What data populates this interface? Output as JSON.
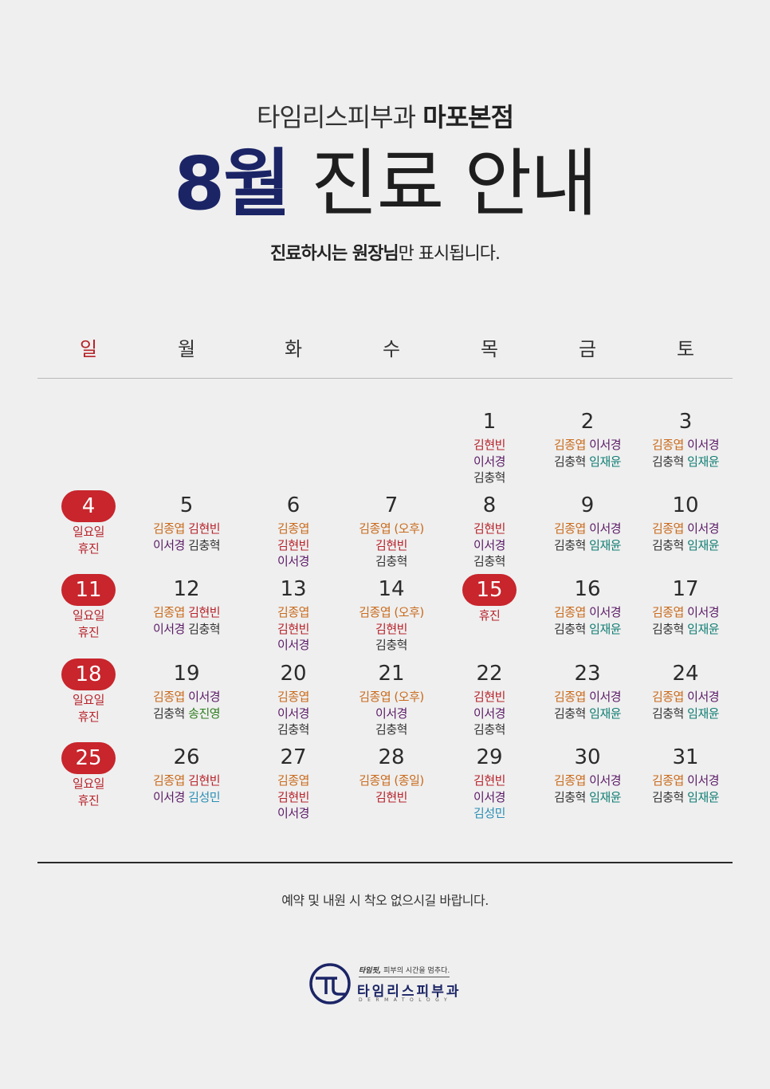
{
  "header": {
    "clinic_light": "타임리스피부과",
    "clinic_bold": "마포본점",
    "title_month": "8월",
    "title_rest": "진료 안내",
    "notice_bold": "진료하시는 원장님",
    "notice_rest": "만 표시됩니다."
  },
  "weekdays": [
    "일",
    "월",
    "화",
    "수",
    "목",
    "금",
    "토"
  ],
  "colors": {
    "김종엽": "#c96a1b",
    "김현빈": "#b7232b",
    "이서경": "#5a1a66",
    "김충혁": "#333333",
    "임재윤": "#0f7d73",
    "송진영": "#2f7d1f",
    "김성민": "#2a8fb5",
    "휴진": "#b7232b",
    "holiday_pill": "#c8252c",
    "brand_navy": "#1b2566"
  },
  "calendar": [
    {
      "date": "1",
      "col": 4,
      "row": 0,
      "lines": [
        [
          "김현빈"
        ],
        [
          "이서경"
        ],
        [
          "김충혁"
        ]
      ]
    },
    {
      "date": "2",
      "col": 5,
      "row": 0,
      "lines": [
        [
          "김종엽",
          "이서경"
        ],
        [
          "김충혁",
          "임재윤"
        ]
      ]
    },
    {
      "date": "3",
      "col": 6,
      "row": 0,
      "lines": [
        [
          "김종엽",
          "이서경"
        ],
        [
          "김충혁",
          "임재윤"
        ]
      ]
    },
    {
      "date": "4",
      "col": 0,
      "row": 1,
      "holiday": true,
      "lines": [
        [
          "일요일"
        ],
        [
          "휴진"
        ]
      ]
    },
    {
      "date": "5",
      "col": 1,
      "row": 1,
      "lines": [
        [
          "김종엽",
          "김현빈"
        ],
        [
          "이서경",
          "김충혁"
        ]
      ]
    },
    {
      "date": "6",
      "col": 2,
      "row": 1,
      "lines": [
        [
          "김종엽"
        ],
        [
          "김현빈"
        ],
        [
          "이서경"
        ]
      ]
    },
    {
      "date": "7",
      "col": 3,
      "row": 1,
      "lines": [
        [
          "김종엽 (오후)"
        ],
        [
          "김현빈"
        ],
        [
          "김충혁"
        ]
      ]
    },
    {
      "date": "8",
      "col": 4,
      "row": 1,
      "lines": [
        [
          "김현빈"
        ],
        [
          "이서경"
        ],
        [
          "김충혁"
        ]
      ]
    },
    {
      "date": "9",
      "col": 5,
      "row": 1,
      "lines": [
        [
          "김종엽",
          "이서경"
        ],
        [
          "김충혁",
          "임재윤"
        ]
      ]
    },
    {
      "date": "10",
      "col": 6,
      "row": 1,
      "lines": [
        [
          "김종엽",
          "이서경"
        ],
        [
          "김충혁",
          "임재윤"
        ]
      ]
    },
    {
      "date": "11",
      "col": 0,
      "row": 2,
      "holiday": true,
      "lines": [
        [
          "일요일"
        ],
        [
          "휴진"
        ]
      ]
    },
    {
      "date": "12",
      "col": 1,
      "row": 2,
      "lines": [
        [
          "김종엽",
          "김현빈"
        ],
        [
          "이서경",
          "김충혁"
        ]
      ]
    },
    {
      "date": "13",
      "col": 2,
      "row": 2,
      "lines": [
        [
          "김종엽"
        ],
        [
          "김현빈"
        ],
        [
          "이서경"
        ]
      ]
    },
    {
      "date": "14",
      "col": 3,
      "row": 2,
      "lines": [
        [
          "김종엽 (오후)"
        ],
        [
          "김현빈"
        ],
        [
          "김충혁"
        ]
      ]
    },
    {
      "date": "15",
      "col": 4,
      "row": 2,
      "holiday": true,
      "lines": [
        [
          "휴진"
        ]
      ]
    },
    {
      "date": "16",
      "col": 5,
      "row": 2,
      "lines": [
        [
          "김종엽",
          "이서경"
        ],
        [
          "김충혁",
          "임재윤"
        ]
      ]
    },
    {
      "date": "17",
      "col": 6,
      "row": 2,
      "lines": [
        [
          "김종엽",
          "이서경"
        ],
        [
          "김충혁",
          "임재윤"
        ]
      ]
    },
    {
      "date": "18",
      "col": 0,
      "row": 3,
      "holiday": true,
      "lines": [
        [
          "일요일"
        ],
        [
          "휴진"
        ]
      ]
    },
    {
      "date": "19",
      "col": 1,
      "row": 3,
      "lines": [
        [
          "김종엽",
          "이서경"
        ],
        [
          "김충혁",
          "송진영"
        ]
      ]
    },
    {
      "date": "20",
      "col": 2,
      "row": 3,
      "lines": [
        [
          "김종엽"
        ],
        [
          "이서경"
        ],
        [
          "김충혁"
        ]
      ]
    },
    {
      "date": "21",
      "col": 3,
      "row": 3,
      "lines": [
        [
          "김종엽 (오후)"
        ],
        [
          "이서경"
        ],
        [
          "김충혁"
        ]
      ]
    },
    {
      "date": "22",
      "col": 4,
      "row": 3,
      "lines": [
        [
          "김현빈"
        ],
        [
          "이서경"
        ],
        [
          "김충혁"
        ]
      ]
    },
    {
      "date": "23",
      "col": 5,
      "row": 3,
      "lines": [
        [
          "김종엽",
          "이서경"
        ],
        [
          "김충혁",
          "임재윤"
        ]
      ]
    },
    {
      "date": "24",
      "col": 6,
      "row": 3,
      "lines": [
        [
          "김종엽",
          "이서경"
        ],
        [
          "김충혁",
          "임재윤"
        ]
      ]
    },
    {
      "date": "25",
      "col": 0,
      "row": 4,
      "holiday": true,
      "lines": [
        [
          "일요일"
        ],
        [
          "휴진"
        ]
      ]
    },
    {
      "date": "26",
      "col": 1,
      "row": 4,
      "lines": [
        [
          "김종엽",
          "김현빈"
        ],
        [
          "이서경",
          "김성민"
        ]
      ]
    },
    {
      "date": "27",
      "col": 2,
      "row": 4,
      "lines": [
        [
          "김종엽"
        ],
        [
          "김현빈"
        ],
        [
          "이서경"
        ]
      ]
    },
    {
      "date": "28",
      "col": 3,
      "row": 4,
      "lines": [
        [
          "김종엽 (종일)"
        ],
        [
          "김현빈"
        ]
      ]
    },
    {
      "date": "29",
      "col": 4,
      "row": 4,
      "lines": [
        [
          "김현빈"
        ],
        [
          "이서경"
        ],
        [
          "김성민"
        ]
      ]
    },
    {
      "date": "30",
      "col": 5,
      "row": 4,
      "lines": [
        [
          "김종엽",
          "이서경"
        ],
        [
          "김충혁",
          "임재윤"
        ]
      ]
    },
    {
      "date": "31",
      "col": 6,
      "row": 4,
      "lines": [
        [
          "김종엽",
          "이서경"
        ],
        [
          "김충혁",
          "임재윤"
        ]
      ]
    }
  ],
  "footer": {
    "note": "예약 및 내원 시 착오 없으시길 바랍니다.",
    "logo_tagline_bold": "타임핏,",
    "logo_tagline": "피부의 시간을 멈추다.",
    "logo_name": "타임리스피부과",
    "logo_sub": "DERMATOLOGY"
  }
}
